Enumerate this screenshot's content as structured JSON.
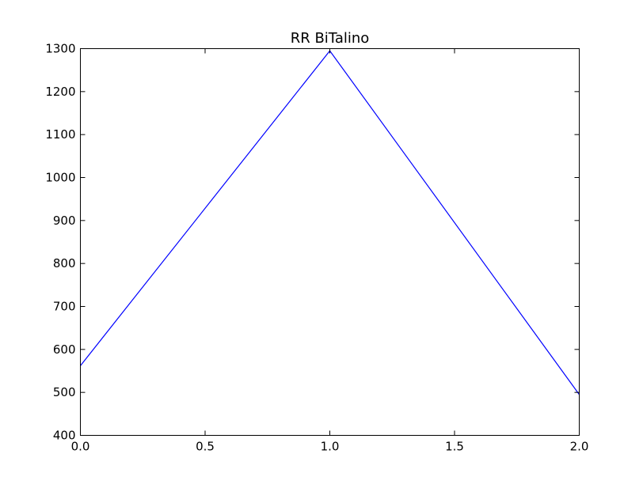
{
  "chart_data": {
    "type": "line",
    "title": "RR BiTalino",
    "xlabel": "",
    "ylabel": "",
    "xlim": [
      0.0,
      2.0
    ],
    "ylim": [
      400,
      1300
    ],
    "x_ticks": [
      0.0,
      0.5,
      1.0,
      1.5,
      2.0
    ],
    "x_tick_labels": [
      "0.0",
      "0.5",
      "1.0",
      "1.5",
      "2.0"
    ],
    "y_ticks": [
      400,
      500,
      600,
      700,
      800,
      900,
      1000,
      1100,
      1200,
      1300
    ],
    "y_tick_labels": [
      "400",
      "500",
      "600",
      "700",
      "800",
      "900",
      "1000",
      "1100",
      "1200",
      "1300"
    ],
    "grid": false,
    "legend": "none",
    "series": [
      {
        "color": "#0000ff",
        "x": [
          0.0,
          1.0,
          2.0
        ],
        "values": [
          562,
          1295,
          495
        ]
      }
    ]
  }
}
